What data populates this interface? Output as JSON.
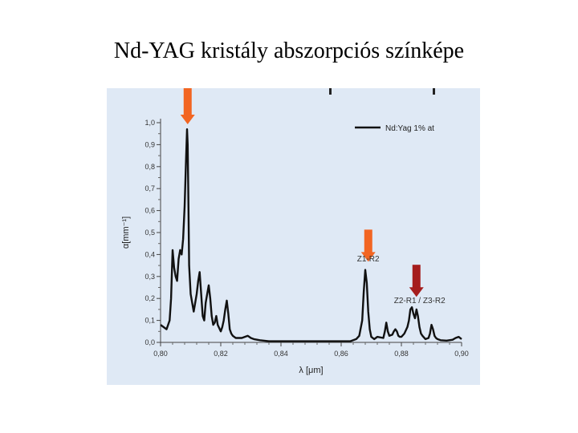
{
  "slide": {
    "title": "Nd-YAG kristály abszorpciós színképe"
  },
  "chart_data": {
    "type": "line",
    "xlabel": "λ [μm]",
    "ylabel": "α[mm⁻¹]",
    "xlim": [
      0.8,
      0.9
    ],
    "ylim": [
      0.0,
      1.0
    ],
    "x_ticks": [
      "0,80",
      "0,82",
      "0,84",
      "0,86",
      "0,88",
      "0,90"
    ],
    "y_ticks": [
      "0,0",
      "0,1",
      "0,2",
      "0,3",
      "0,4",
      "0,5",
      "0,6",
      "0,7",
      "0,8",
      "0,9",
      "1,0"
    ],
    "legend": {
      "label": "Nd:Yag 1% at",
      "position": "top-right"
    },
    "series": [
      {
        "name": "Nd:Yag 1% at",
        "x": [
          0.8,
          0.802,
          0.803,
          0.8035,
          0.804,
          0.8045,
          0.805,
          0.8055,
          0.806,
          0.8065,
          0.807,
          0.8075,
          0.808,
          0.8085,
          0.8088,
          0.809,
          0.8092,
          0.8095,
          0.81,
          0.8105,
          0.811,
          0.812,
          0.8125,
          0.813,
          0.8135,
          0.814,
          0.8145,
          0.815,
          0.8155,
          0.816,
          0.8165,
          0.817,
          0.8175,
          0.818,
          0.8185,
          0.819,
          0.82,
          0.8205,
          0.821,
          0.8215,
          0.822,
          0.8225,
          0.823,
          0.8235,
          0.824,
          0.825,
          0.827,
          0.829,
          0.83,
          0.831,
          0.833,
          0.836,
          0.84,
          0.845,
          0.85,
          0.855,
          0.86,
          0.863,
          0.865,
          0.866,
          0.867,
          0.8675,
          0.868,
          0.8685,
          0.869,
          0.8695,
          0.87,
          0.871,
          0.872,
          0.874,
          0.8745,
          0.875,
          0.8755,
          0.876,
          0.877,
          0.8775,
          0.878,
          0.8785,
          0.879,
          0.8795,
          0.88,
          0.881,
          0.882,
          0.8825,
          0.883,
          0.8835,
          0.884,
          0.8845,
          0.885,
          0.8855,
          0.886,
          0.8865,
          0.887,
          0.888,
          0.889,
          0.8895,
          0.89,
          0.8905,
          0.891,
          0.8915,
          0.892,
          0.893,
          0.895,
          0.897,
          0.898,
          0.899,
          0.9
        ],
        "values": [
          0.08,
          0.06,
          0.1,
          0.2,
          0.42,
          0.34,
          0.3,
          0.28,
          0.38,
          0.42,
          0.4,
          0.47,
          0.62,
          0.85,
          0.97,
          0.9,
          0.7,
          0.35,
          0.22,
          0.18,
          0.14,
          0.22,
          0.28,
          0.32,
          0.22,
          0.12,
          0.1,
          0.18,
          0.22,
          0.26,
          0.2,
          0.12,
          0.08,
          0.09,
          0.12,
          0.08,
          0.05,
          0.07,
          0.1,
          0.15,
          0.19,
          0.13,
          0.06,
          0.04,
          0.03,
          0.02,
          0.02,
          0.03,
          0.02,
          0.015,
          0.01,
          0.005,
          0.005,
          0.005,
          0.005,
          0.005,
          0.005,
          0.005,
          0.015,
          0.03,
          0.1,
          0.23,
          0.33,
          0.27,
          0.14,
          0.06,
          0.025,
          0.015,
          0.025,
          0.02,
          0.05,
          0.09,
          0.05,
          0.03,
          0.035,
          0.05,
          0.06,
          0.05,
          0.03,
          0.025,
          0.025,
          0.04,
          0.07,
          0.1,
          0.15,
          0.16,
          0.13,
          0.11,
          0.15,
          0.12,
          0.07,
          0.04,
          0.03,
          0.015,
          0.02,
          0.04,
          0.08,
          0.06,
          0.03,
          0.02,
          0.015,
          0.01,
          0.008,
          0.012,
          0.02,
          0.025,
          0.015
        ]
      }
    ],
    "annotations": [
      {
        "text": "Z1-R2",
        "x": 0.869,
        "y": 0.36,
        "arrow_color": "#f26522"
      },
      {
        "text": "Z2-R1 / Z3-R2",
        "x": 0.885,
        "y": 0.2,
        "arrow_color": "#a51d1d"
      },
      {
        "text": "",
        "x": 0.809,
        "y": 1.0,
        "arrow_color": "#f26522"
      }
    ],
    "grid": false
  },
  "colors": {
    "panel_bg": "#dfe9f5",
    "line": "#111111",
    "arrow_orange": "#f26522",
    "arrow_dark": "#a51d1d"
  }
}
